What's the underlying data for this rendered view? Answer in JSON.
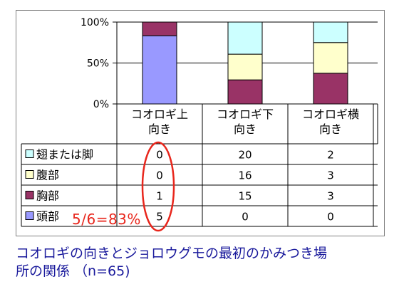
{
  "chart_data": {
    "type": "bar",
    "stacked": true,
    "normalized": true,
    "categories": [
      "コオロギ上\n向き",
      "コオロギ下\n向き",
      "コオロギ横\n向き"
    ],
    "series": [
      {
        "name": "頭部",
        "values": [
          5,
          0,
          0
        ],
        "color": "#9999ff"
      },
      {
        "name": "胸部",
        "values": [
          1,
          15,
          3
        ],
        "color": "#993366"
      },
      {
        "name": "腹部",
        "values": [
          0,
          16,
          3
        ],
        "color": "#ffffcc"
      },
      {
        "name": "翅または脚",
        "values": [
          0,
          20,
          2
        ],
        "color": "#ccffff"
      }
    ],
    "table_order": [
      "翅または脚",
      "腹部",
      "胸部",
      "頭部"
    ],
    "y_ticks": [
      "100%",
      "50%",
      "0%"
    ],
    "ylim": [
      0,
      100
    ],
    "grid": true,
    "legend": "data-table"
  },
  "annotation": {
    "text": "5/6=83%",
    "color": "#e8261c",
    "highlighted_column": 0
  },
  "caption": {
    "line1": "コオロギの向きとジョロウグモの最初のかみつき場",
    "line2": "所の関係 （n=65)"
  }
}
